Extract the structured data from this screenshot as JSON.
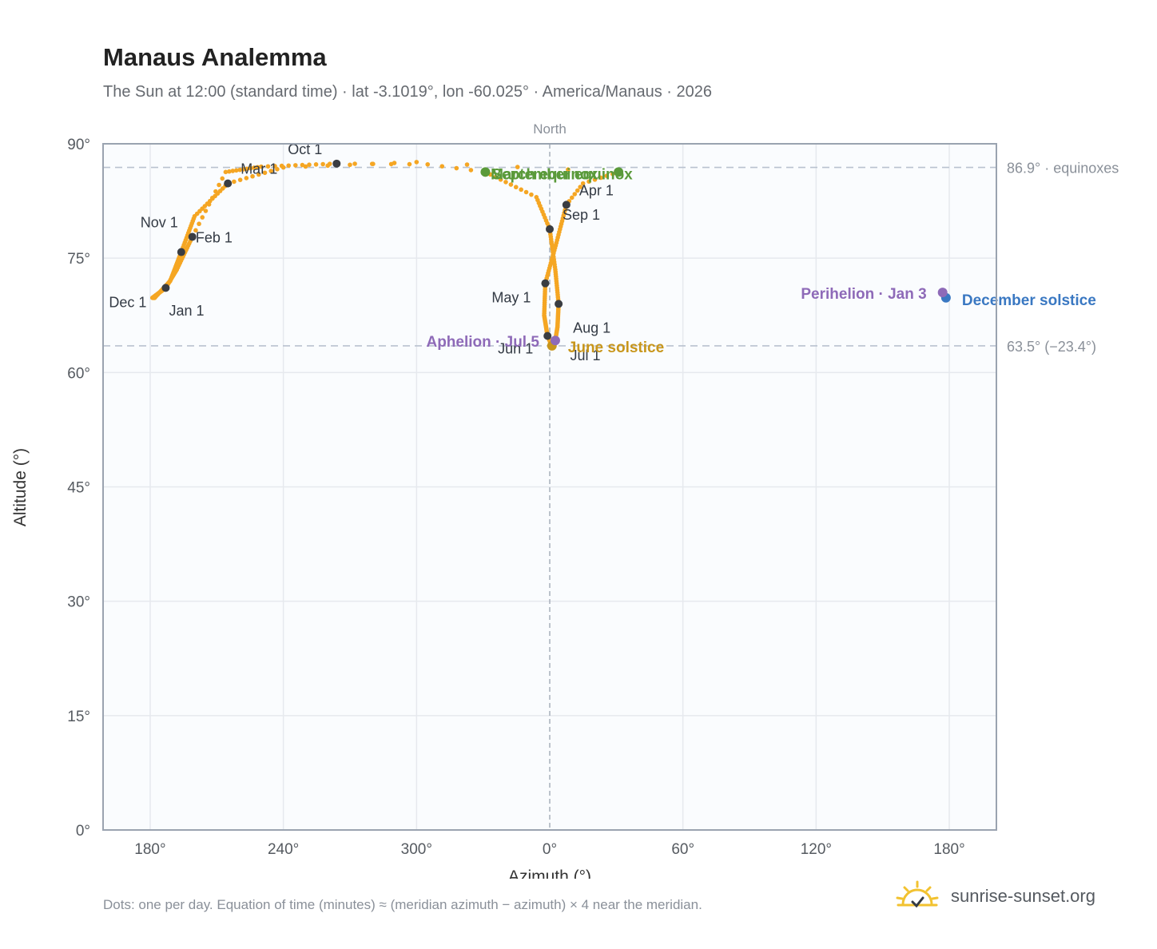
{
  "header": {
    "title": "Manaus Analemma",
    "subtitle": "The Sun at 12:00 (standard time) · lat -3.1019°, lon -60.025° · America/Manaus · 2026"
  },
  "footer": {
    "note": "Dots: one per day. Equation of time (minutes) ≈ (meridian azimuth − azimuth) × 4 near the meridian.",
    "brand": "sunrise-sunset.org",
    "brand_icon": "sun-horizon-icon"
  },
  "colors": {
    "curve": "#f5a623",
    "month_marker": "#3a3d42",
    "december_solstice": "#3a78c2",
    "june_solstice": "#c8961b",
    "equinox": "#5a9a3a",
    "perihelion_aphelion": "#8e6ab8",
    "plot_background": "#fafcfe",
    "grid": "#e6e9ee",
    "frame": "#9aa3b0"
  },
  "chart_data": {
    "type": "scatter",
    "xlabel": "Azimuth (°)",
    "ylabel": "Altitude (°)",
    "x_axis_note": "Azimuth is unwrapped around North: 180° → 240° → 300° → 0° → 60° → 120° → 180°",
    "x_ticks": [
      "180°",
      "240°",
      "300°",
      "0°",
      "60°",
      "120°",
      "180°"
    ],
    "y_ticks": [
      "0°",
      "15°",
      "30°",
      "45°",
      "60°",
      "75°",
      "90°"
    ],
    "ylim": [
      0,
      90
    ],
    "grid": true,
    "meridian_label": "North",
    "reference_lines": [
      {
        "label": "86.9° · equinoxes",
        "altitude": 86.9
      },
      {
        "label": "63.5° (−23.4°)",
        "altitude": 63.5
      }
    ],
    "series": [
      {
        "points": [
          {
            "date": "Jan 1",
            "azimuth": -178.0,
            "altitude": 69.8
          },
          {
            "date": "Jan 16",
            "azimuth": -171.0,
            "altitude": 72.0
          },
          {
            "date": "Feb 1",
            "azimuth": -166.0,
            "altitude": 75.8
          },
          {
            "date": "Feb 16",
            "azimuth": -160.0,
            "altitude": 80.5
          },
          {
            "date": "Mar 1",
            "azimuth": -145.0,
            "altitude": 84.8
          },
          {
            "date": "Mar 10",
            "azimuth": -120.0,
            "altitude": 86.9
          },
          {
            "date": "Mar 16",
            "azimuth": -60.0,
            "altitude": 87.6
          },
          {
            "date": "Mar 20",
            "azimuth": 31.0,
            "altitude": 86.3
          },
          {
            "date": "Mar 26",
            "azimuth": 15.0,
            "altitude": 84.8
          },
          {
            "date": "Apr 1",
            "azimuth": 7.5,
            "altitude": 82.0
          },
          {
            "date": "Apr 15",
            "azimuth": 3.0,
            "altitude": 77.0
          },
          {
            "date": "May 1",
            "azimuth": -2.0,
            "altitude": 71.7
          },
          {
            "date": "May 16",
            "azimuth": -2.5,
            "altitude": 67.5
          },
          {
            "date": "Jun 1",
            "azimuth": -1.0,
            "altitude": 64.8
          },
          {
            "date": "Jun 21",
            "azimuth": 1.0,
            "altitude": 63.5
          },
          {
            "date": "Jul 1",
            "azimuth": 2.0,
            "altitude": 63.7
          },
          {
            "date": "Jul 5",
            "azimuth": 2.5,
            "altitude": 64.2
          },
          {
            "date": "Jul 16",
            "azimuth": 3.5,
            "altitude": 66.0
          },
          {
            "date": "Aug 1",
            "azimuth": 4.0,
            "altitude": 69.0
          },
          {
            "date": "Aug 16",
            "azimuth": 2.5,
            "altitude": 73.5
          },
          {
            "date": "Sep 1",
            "azimuth": 0.0,
            "altitude": 78.8
          },
          {
            "date": "Sep 12",
            "azimuth": -6.0,
            "altitude": 83.0
          },
          {
            "date": "Sep 22",
            "azimuth": -29.0,
            "altitude": 86.3
          },
          {
            "date": "Sep 26",
            "azimuth": -55.0,
            "altitude": 87.3
          },
          {
            "date": "Oct 1",
            "azimuth": -96.0,
            "altitude": 87.4
          },
          {
            "date": "Oct 12",
            "azimuth": -130.0,
            "altitude": 87.0
          },
          {
            "date": "Oct 22",
            "azimuth": -146.0,
            "altitude": 86.3
          },
          {
            "date": "Nov 1",
            "azimuth": -161.0,
            "altitude": 77.8
          },
          {
            "date": "Nov 16",
            "azimuth": -168.0,
            "altitude": 73.5
          },
          {
            "date": "Dec 1",
            "azimuth": -173.0,
            "altitude": 71.1
          },
          {
            "date": "Dec 21",
            "azimuth": -179.0,
            "altitude": 69.8
          },
          {
            "date": "Dec 31",
            "azimuth": -178.0,
            "altitude": 69.8
          }
        ]
      }
    ],
    "month_markers": [
      {
        "label": "Jan 1",
        "azimuth": -178.0,
        "altitude": 69.8,
        "show_dot": false
      },
      {
        "label": "Feb 1",
        "azimuth": -166.0,
        "altitude": 75.8,
        "show_dot": true
      },
      {
        "label": "Mar 1",
        "azimuth": -145.0,
        "altitude": 84.8,
        "show_dot": true
      },
      {
        "label": "Apr 1",
        "azimuth": 7.5,
        "altitude": 82.0,
        "show_dot": true
      },
      {
        "label": "May 1",
        "azimuth": -2.0,
        "altitude": 71.7,
        "show_dot": true
      },
      {
        "label": "Jun 1",
        "azimuth": -1.0,
        "altitude": 64.8,
        "show_dot": true
      },
      {
        "label": "Jul 1",
        "azimuth": 2.0,
        "altitude": 63.7,
        "show_dot": false
      },
      {
        "label": "Aug 1",
        "azimuth": 4.0,
        "altitude": 69.0,
        "show_dot": true
      },
      {
        "label": "Sep 1",
        "azimuth": 0.0,
        "altitude": 78.8,
        "show_dot": true
      },
      {
        "label": "Oct 1",
        "azimuth": -96.0,
        "altitude": 87.4,
        "show_dot": true
      },
      {
        "label": "Nov 1",
        "azimuth": -161.0,
        "altitude": 77.8,
        "show_dot": true
      },
      {
        "label": "Dec 1",
        "azimuth": -173.0,
        "altitude": 71.1,
        "show_dot": true
      }
    ],
    "events": [
      {
        "label": "December solstice",
        "azimuth": 178.5,
        "altitude": 69.8,
        "color_key": "december_solstice"
      },
      {
        "label": "June solstice",
        "azimuth": 1.0,
        "altitude": 63.5,
        "color_key": "june_solstice"
      },
      {
        "label": "March equinox",
        "azimuth": 31.0,
        "altitude": 86.3,
        "color_key": "equinox"
      },
      {
        "label": "September equinox",
        "azimuth": -29.0,
        "altitude": 86.3,
        "color_key": "equinox"
      },
      {
        "label": "Perihelion · Jan 3",
        "azimuth": 177.0,
        "altitude": 70.5,
        "color_key": "perihelion_aphelion"
      },
      {
        "label": "Aphelion · Jul 5",
        "azimuth": 2.5,
        "altitude": 64.2,
        "color_key": "perihelion_aphelion"
      }
    ]
  }
}
